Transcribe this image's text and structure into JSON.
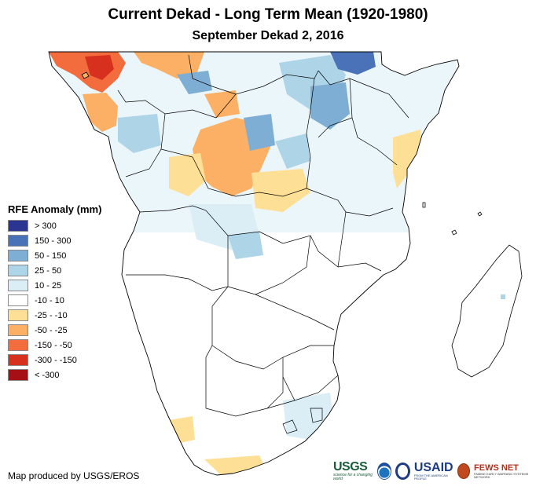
{
  "title": "Current Dekad - Long Term Mean (1920-1980)",
  "subtitle": "September Dekad 2, 2016",
  "legend": {
    "title": "RFE Anomaly (mm)",
    "items": [
      {
        "label": "> 300",
        "color": "#2b3490"
      },
      {
        "label": "150 - 300",
        "color": "#4a72b8"
      },
      {
        "label": "50 - 150",
        "color": "#7eaed4"
      },
      {
        "label": "25 - 50",
        "color": "#aed4e8"
      },
      {
        "label": "10 - 25",
        "color": "#dbeef6"
      },
      {
        "label": "-10 - 10",
        "color": "#ffffff"
      },
      {
        "label": "-25 - -10",
        "color": "#fedf96"
      },
      {
        "label": "-50 - -25",
        "color": "#fbb065"
      },
      {
        "label": "-150 - -50",
        "color": "#f26c3e"
      },
      {
        "label": "-300 - -150",
        "color": "#d7301f"
      },
      {
        "label": "< -300",
        "color": "#a50f15"
      }
    ]
  },
  "credit": "Map produced by USGS/EROS",
  "logos": {
    "usgs": "USGS",
    "usgs_tagline": "science for a changing world",
    "noaa": "NOAA",
    "usaid": "USAID",
    "usaid_tagline": "FROM THE AMERICAN PEOPLE",
    "fews": "FEWS NET",
    "fews_tagline": "FAMINE EARLY WARNING SYSTEMS NETWORK"
  }
}
